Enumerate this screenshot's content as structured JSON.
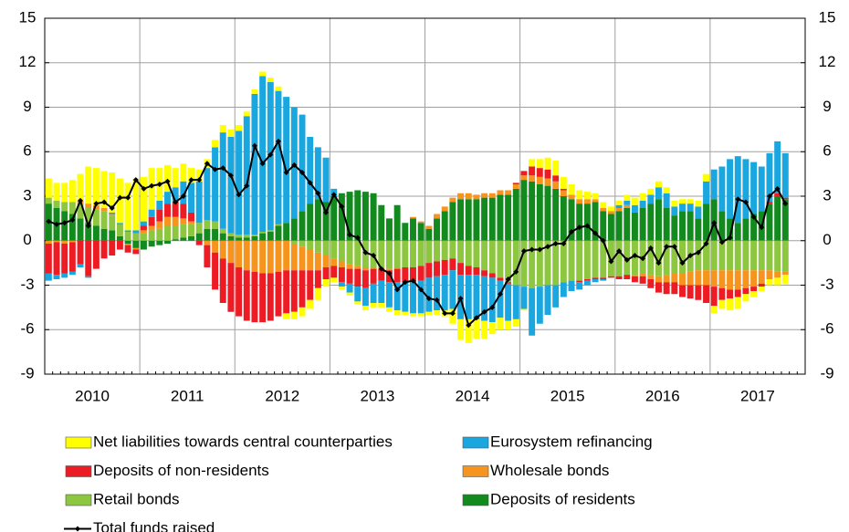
{
  "chart_data": {
    "type": "bar",
    "stacked": true,
    "x_labels": [
      "2010",
      "2011",
      "2012",
      "2013",
      "2014",
      "2015",
      "2016",
      "2017"
    ],
    "ylim": [
      -9,
      15
    ],
    "yticks": [
      -9,
      -6,
      -3,
      0,
      3,
      6,
      9,
      12,
      15
    ],
    "y2lim": [
      -9,
      15
    ],
    "y2ticks": [
      -9,
      -6,
      -3,
      0,
      3,
      6,
      9,
      12,
      15
    ],
    "grid": true,
    "series": [
      {
        "name": "Net liabilities towards central counterparties",
        "color": "#ffff00",
        "values": [
          1.3,
          1.2,
          1.3,
          1.5,
          1.8,
          2.5,
          2.5,
          2.5,
          2.7,
          3.0,
          3.2,
          3.5,
          3.0,
          2.8,
          2.2,
          1.8,
          1.3,
          1.2,
          1.0,
          0.8,
          0.6,
          0.5,
          0.5,
          0.5,
          0.4,
          0.3,
          0.3,
          0.3,
          0.3,
          0.3,
          -0.4,
          -0.5,
          -0.6,
          -0.6,
          -0.8,
          -0.5,
          -0.3,
          -0.2,
          -0.2,
          -0.2,
          -0.3,
          -0.3,
          -0.3,
          -0.3,
          -0.3,
          -0.2,
          -0.2,
          -0.2,
          -0.2,
          -0.3,
          -0.4,
          -1.0,
          -1.4,
          -1.6,
          -1.3,
          -1.2,
          -0.8,
          -0.8,
          -0.6,
          -0.5,
          -0.1,
          0.5,
          0.6,
          0.8,
          1.0,
          0.8,
          0.7,
          0.6,
          0.5,
          0.4,
          0.4,
          0.3,
          0.3,
          0.4,
          0.5,
          0.5,
          0.4,
          0.4,
          0.4,
          0.4,
          0.3,
          0.3,
          0.4,
          0.5,
          -0.5,
          -0.6,
          -0.8,
          -0.8,
          -0.5,
          -0.4,
          -0.3,
          -0.4,
          -0.5,
          -0.6
        ]
      },
      {
        "name": "Eurosystem refinancing",
        "color": "#1aa7e0",
        "values": [
          -0.5,
          -0.3,
          -0.3,
          -0.2,
          -0.2,
          -0.1,
          0.0,
          0.0,
          0.1,
          0.1,
          0.1,
          0.2,
          0.3,
          0.5,
          0.6,
          0.8,
          1.0,
          1.5,
          2.0,
          2.8,
          3.5,
          5.0,
          6.5,
          6.5,
          7.0,
          8.0,
          9.5,
          10.5,
          10.0,
          9.0,
          8.5,
          7.5,
          6.5,
          4.5,
          3.5,
          3.0,
          0.5,
          -0.3,
          -0.6,
          -1.0,
          -1.2,
          -1.3,
          -1.5,
          -1.7,
          -1.9,
          -2.0,
          -2.1,
          -2.2,
          -2.3,
          -2.3,
          -2.4,
          -2.6,
          -3.0,
          -3.0,
          -3.0,
          -3.0,
          -3.0,
          -2.5,
          -2.5,
          -2.3,
          -1.5,
          -3.2,
          -2.5,
          -2.0,
          -1.5,
          -1.0,
          -0.7,
          -0.5,
          -0.3,
          -0.2,
          -0.1,
          0.0,
          0.2,
          0.3,
          0.5,
          0.5,
          0.6,
          0.8,
          1.0,
          0.6,
          0.5,
          0.5,
          0.8,
          1.5,
          2.0,
          3.0,
          4.0,
          4.5,
          4.0,
          3.5,
          3.0,
          3.3,
          3.5,
          3.0
        ]
      },
      {
        "name": "Deposits of non-residents",
        "color": "#ed1c24",
        "values": [
          -2.0,
          -2.2,
          -2.0,
          -2.0,
          -1.6,
          -2.4,
          -1.9,
          -1.2,
          -1.0,
          -0.6,
          -0.5,
          -0.3,
          0.3,
          0.6,
          0.8,
          0.9,
          1.0,
          1.0,
          0.6,
          -0.3,
          -1.5,
          -2.5,
          -3.0,
          -3.3,
          -3.3,
          -3.4,
          -3.4,
          -3.3,
          -3.2,
          -3.0,
          -2.9,
          -2.8,
          -2.5,
          -2.0,
          -1.2,
          -0.8,
          -0.8,
          -1.0,
          -1.0,
          -1.2,
          -1.2,
          -1.0,
          -0.8,
          -0.8,
          -0.9,
          -1.0,
          -1.0,
          -1.0,
          -1.0,
          -1.0,
          -1.0,
          -0.8,
          -0.8,
          -0.6,
          -0.5,
          -0.4,
          -0.3,
          -0.2,
          -0.1,
          0.1,
          0.3,
          0.6,
          0.6,
          0.6,
          0.4,
          0.1,
          0.0,
          -0.1,
          -0.1,
          -0.1,
          -0.1,
          -0.1,
          -0.2,
          -0.3,
          -0.4,
          -0.5,
          -0.6,
          -0.7,
          -0.8,
          -0.8,
          -0.8,
          -0.9,
          -1.0,
          -1.2,
          -1.3,
          -0.8,
          -0.6,
          -0.5,
          -0.4,
          -0.3,
          -0.2,
          0.1,
          0.2,
          0.1
        ]
      },
      {
        "name": "Wholesale bonds",
        "color": "#f7941d",
        "values": [
          -0.2,
          -0.1,
          -0.2,
          -0.1,
          0.2,
          0.3,
          0.3,
          0.2,
          0.1,
          0.0,
          -0.1,
          -0.1,
          0.2,
          0.3,
          0.5,
          0.6,
          0.6,
          0.4,
          0.2,
          0.0,
          -0.3,
          -0.8,
          -1.2,
          -1.5,
          -1.8,
          -2.0,
          -2.1,
          -2.2,
          -2.2,
          -2.1,
          -2.0,
          -1.8,
          -1.6,
          -1.4,
          -1.2,
          -0.8,
          -0.5,
          -0.4,
          -0.3,
          -0.2,
          -0.2,
          -0.1,
          -0.1,
          -0.1,
          -0.1,
          0.0,
          0.1,
          0.1,
          0.2,
          0.3,
          0.3,
          0.3,
          0.4,
          0.4,
          0.3,
          0.3,
          0.3,
          0.3,
          0.3,
          0.3,
          0.3,
          0.4,
          0.5,
          0.5,
          0.5,
          0.4,
          0.3,
          0.3,
          0.3,
          0.2,
          0.2,
          0.2,
          0.2,
          0.2,
          -0.1,
          -0.2,
          -0.3,
          -0.4,
          -0.5,
          -0.6,
          -0.8,
          -0.9,
          -1.0,
          -1.0,
          -1.1,
          -1.2,
          -1.3,
          -1.3,
          -1.2,
          -1.1,
          -0.9,
          -0.6,
          -0.4,
          -0.2
        ]
      },
      {
        "name": "Retail bonds",
        "color": "#8dc63f",
        "values": [
          0.4,
          0.5,
          0.6,
          0.8,
          1.0,
          1.0,
          1.1,
          1.2,
          1.0,
          0.8,
          0.6,
          0.5,
          0.5,
          0.7,
          0.8,
          1.0,
          0.9,
          0.9,
          0.8,
          0.7,
          0.6,
          0.5,
          0.3,
          0.2,
          0.2,
          0.2,
          0.1,
          0.1,
          0.1,
          0.1,
          0.0,
          -0.2,
          -0.4,
          -0.6,
          -0.8,
          -1.0,
          -1.2,
          -1.4,
          -1.6,
          -1.7,
          -1.8,
          -1.8,
          -1.8,
          -1.9,
          -1.8,
          -1.8,
          -1.8,
          -1.7,
          -1.5,
          -1.4,
          -1.3,
          -1.2,
          -1.5,
          -1.7,
          -1.8,
          -2.0,
          -2.2,
          -2.5,
          -2.8,
          -3.0,
          -3.1,
          -3.2,
          -3.1,
          -3.0,
          -3.0,
          -2.8,
          -2.7,
          -2.7,
          -2.6,
          -2.5,
          -2.5,
          -2.4,
          -2.4,
          -2.3,
          -2.3,
          -2.2,
          -2.3,
          -2.4,
          -2.3,
          -2.2,
          -2.2,
          -2.1,
          -2.0,
          -2.0,
          -2.0,
          -2.0,
          -2.0,
          -2.0,
          -2.0,
          -2.0,
          -2.0,
          -2.0,
          -2.1,
          -2.1
        ]
      },
      {
        "name": "Deposits of residents",
        "color": "#138a1e",
        "values": [
          2.5,
          2.2,
          2.0,
          1.8,
          1.5,
          1.2,
          1.0,
          0.8,
          0.7,
          0.3,
          -0.2,
          -0.5,
          -0.6,
          -0.4,
          -0.3,
          -0.2,
          0.1,
          0.2,
          0.3,
          0.5,
          0.8,
          0.8,
          0.5,
          0.3,
          0.2,
          0.2,
          0.3,
          0.5,
          0.6,
          1.0,
          1.2,
          1.5,
          2.0,
          2.5,
          2.8,
          2.6,
          3.0,
          3.2,
          3.3,
          3.4,
          3.3,
          3.2,
          2.4,
          1.5,
          2.4,
          1.2,
          1.5,
          1.2,
          0.8,
          1.5,
          2.0,
          2.6,
          2.8,
          2.8,
          2.8,
          2.9,
          2.9,
          3.1,
          3.1,
          3.5,
          4.1,
          4.0,
          3.8,
          3.7,
          3.5,
          3.0,
          2.8,
          2.5,
          2.5,
          2.6,
          2.0,
          1.8,
          2.0,
          2.2,
          1.9,
          2.2,
          2.5,
          2.8,
          2.2,
          1.7,
          2.0,
          2.0,
          1.5,
          2.5,
          2.8,
          2.0,
          1.5,
          1.2,
          1.5,
          1.8,
          2.0,
          2.5,
          3.0,
          2.8
        ]
      },
      {
        "name": "Total funds raised",
        "type": "line",
        "color": "#000000",
        "values": [
          1.3,
          1.1,
          1.2,
          1.4,
          2.7,
          1.0,
          2.5,
          2.6,
          2.2,
          2.9,
          2.9,
          4.1,
          3.5,
          3.7,
          3.8,
          4.0,
          2.6,
          3.0,
          4.1,
          4.1,
          5.2,
          4.8,
          4.9,
          4.4,
          3.1,
          3.7,
          6.4,
          5.2,
          5.8,
          6.7,
          4.6,
          5.1,
          4.6,
          3.9,
          3.2,
          1.9,
          3.1,
          2.3,
          0.4,
          0.2,
          -0.8,
          -1.0,
          -1.9,
          -2.2,
          -3.3,
          -2.8,
          -2.7,
          -3.3,
          -3.9,
          -4.0,
          -4.9,
          -4.9,
          -3.9,
          -5.7,
          -5.2,
          -4.8,
          -4.5,
          -3.6,
          -2.6,
          -2.1,
          -0.7,
          -0.6,
          -0.6,
          -0.4,
          -0.2,
          -0.2,
          0.6,
          0.9,
          1.0,
          0.5,
          0.0,
          -1.4,
          -0.7,
          -1.3,
          -1.0,
          -1.2,
          -0.5,
          -1.5,
          -0.4,
          -0.4,
          -1.5,
          -1.0,
          -0.8,
          -0.2,
          1.2,
          -0.1,
          0.2,
          2.8,
          2.6,
          1.6,
          0.9,
          3.0,
          3.5,
          2.5
        ]
      }
    ]
  }
}
